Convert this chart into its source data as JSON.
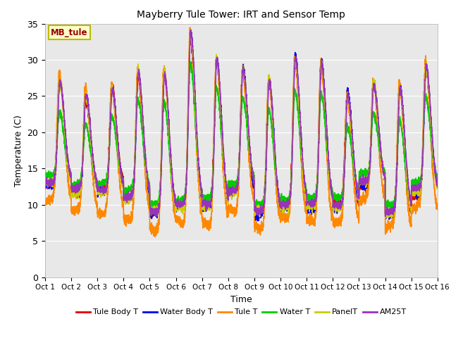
{
  "title": "Mayberry Tule Tower: IRT and Sensor Temp",
  "xlabel": "Time",
  "ylabel": "Temperature (C)",
  "ylim": [
    0,
    35
  ],
  "xlim_days": 15,
  "plot_bg": "#e8e8e8",
  "fig_bg": "#ffffff",
  "grid_color": "#ffffff",
  "series": {
    "Tule Body T": {
      "color": "#dd0000",
      "lw": 1.2
    },
    "Water Body T": {
      "color": "#0000ee",
      "lw": 1.2
    },
    "Tule T": {
      "color": "#ff8800",
      "lw": 1.2
    },
    "Water T": {
      "color": "#00cc00",
      "lw": 1.2
    },
    "PanelT": {
      "color": "#cccc00",
      "lw": 1.2
    },
    "AM25T": {
      "color": "#9933bb",
      "lw": 1.2
    }
  },
  "xtick_labels": [
    "Oct 1",
    "Oct 2",
    "Oct 3",
    "Oct 4",
    "Oct 5",
    "Oct 6",
    "Oct 7",
    "Oct 8",
    "Oct 9",
    "Oct 10",
    "Oct 11",
    "Oct 12",
    "Oct 13",
    "Oct 14",
    "Oct 15",
    "Oct 16"
  ],
  "yticks": [
    0,
    5,
    10,
    15,
    20,
    25,
    30,
    35
  ],
  "annotation_text": "MB_tule",
  "annotation_color": "#990000",
  "annotation_bg": "#ffffcc",
  "annotation_edge": "#bbbb00"
}
